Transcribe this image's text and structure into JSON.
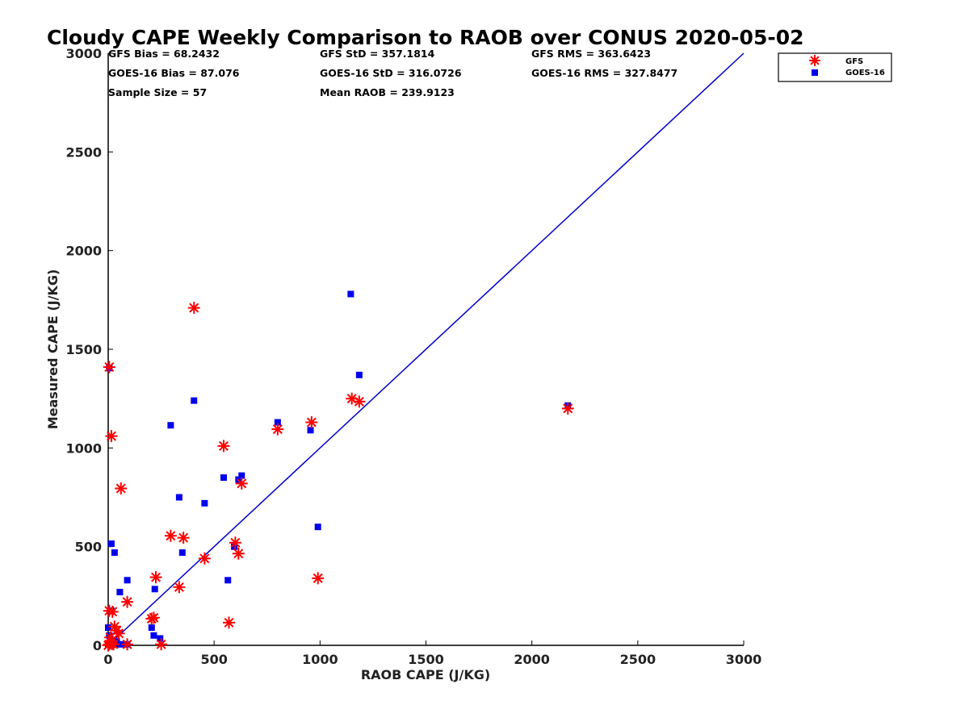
{
  "chart_data": {
    "type": "scatter",
    "title": "Cloudy CAPE Weekly Comparison to RAOB over CONUS 2020-05-02",
    "xlabel": "RAOB CAPE (J/KG)",
    "ylabel": "Measured CAPE (J/KG)",
    "xlim": [
      0,
      3000
    ],
    "ylim": [
      0,
      3000
    ],
    "xticks": [
      "0",
      "500",
      "1000",
      "1500",
      "2000",
      "2500",
      "3000"
    ],
    "yticks": [
      "0",
      "500",
      "1000",
      "1500",
      "2000",
      "2500",
      "3000"
    ],
    "grid": false,
    "legend_position": "top-right",
    "stats": [
      [
        "GFS Bias = 68.2432",
        "GFS StD = 357.1814",
        "GFS RMS = 363.6423"
      ],
      [
        "GOES-16 Bias = 87.076",
        "GOES-16 StD = 316.0726",
        "GOES-16 RMS = 327.8477"
      ],
      [
        "Sample Size = 57",
        "Mean RAOB = 239.9123",
        ""
      ]
    ],
    "reference_line": {
      "x": [
        0,
        3000
      ],
      "y": [
        0,
        3000
      ],
      "color": "#0000cc"
    },
    "series": [
      {
        "name": "GFS",
        "marker": "asterisk",
        "color": "#ff0000",
        "points": [
          [
            5,
            1410
          ],
          [
            15,
            1060
          ],
          [
            60,
            795
          ],
          [
            405,
            1710
          ],
          [
            545,
            1010
          ],
          [
            800,
            1095
          ],
          [
            960,
            1130
          ],
          [
            1150,
            1250
          ],
          [
            1185,
            1235
          ],
          [
            2170,
            1200
          ],
          [
            630,
            820
          ],
          [
            295,
            555
          ],
          [
            355,
            545
          ],
          [
            600,
            520
          ],
          [
            615,
            465
          ],
          [
            455,
            440
          ],
          [
            990,
            340
          ],
          [
            225,
            345
          ],
          [
            335,
            295
          ],
          [
            90,
            220
          ],
          [
            215,
            140
          ],
          [
            570,
            115
          ],
          [
            5,
            175
          ],
          [
            20,
            170
          ],
          [
            30,
            95
          ],
          [
            40,
            75
          ],
          [
            50,
            60
          ],
          [
            10,
            40
          ],
          [
            15,
            10
          ],
          [
            25,
            5
          ],
          [
            5,
            5
          ],
          [
            90,
            5
          ],
          [
            250,
            5
          ],
          [
            205,
            135
          ],
          [
            0,
            0
          ]
        ]
      },
      {
        "name": "GOES-16",
        "marker": "square",
        "color": "#0000ee",
        "points": [
          [
            1145,
            1780
          ],
          [
            5,
            1405
          ],
          [
            1185,
            1370
          ],
          [
            405,
            1240
          ],
          [
            295,
            1115
          ],
          [
            800,
            1130
          ],
          [
            955,
            1090
          ],
          [
            2170,
            1215
          ],
          [
            630,
            860
          ],
          [
            545,
            850
          ],
          [
            615,
            840
          ],
          [
            335,
            750
          ],
          [
            455,
            720
          ],
          [
            990,
            600
          ],
          [
            15,
            515
          ],
          [
            595,
            500
          ],
          [
            30,
            470
          ],
          [
            350,
            470
          ],
          [
            90,
            330
          ],
          [
            565,
            330
          ],
          [
            220,
            285
          ],
          [
            55,
            270
          ],
          [
            15,
            175
          ],
          [
            205,
            90
          ],
          [
            215,
            50
          ],
          [
            245,
            35
          ],
          [
            0,
            90
          ],
          [
            5,
            50
          ],
          [
            10,
            30
          ],
          [
            20,
            10
          ],
          [
            35,
            5
          ],
          [
            60,
            5
          ],
          [
            90,
            5
          ],
          [
            40,
            20
          ],
          [
            0,
            5
          ]
        ]
      }
    ]
  }
}
